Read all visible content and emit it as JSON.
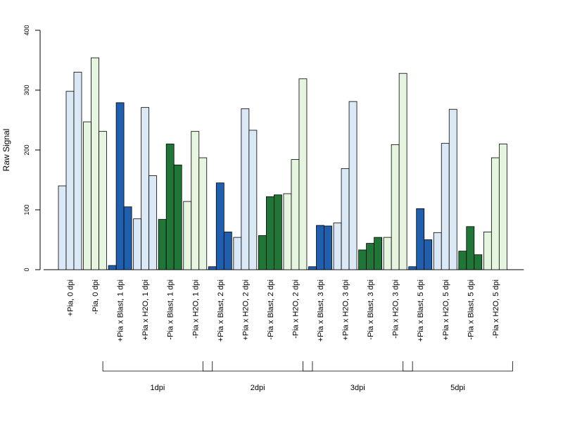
{
  "chart_data": {
    "type": "bar",
    "ylabel": "Raw Signal",
    "ylim": [
      0,
      400
    ],
    "yticks": [
      0,
      100,
      200,
      300,
      400
    ],
    "categories": [
      "+Pia, 0 dpi",
      "-Pia, 0 dpi",
      "+Pia x Blast, 1 dpi",
      "+Pia x H2O, 1 dpi",
      "-Pia x Blast, 1 dpi",
      "-Pia x H2O, 1 dpi",
      "+Pia x Blast, 2 dpi",
      "+Pia x H2O, 2 dpi",
      "-Pia x Blast, 2 dpi",
      "-Pia x H2O, 2 dpi",
      "+Pia x Blast, 3 dpi",
      "+Pia x H2O, 3 dpi",
      "-Pia x Blast, 3 dpi",
      "-Pia x H2O, 3 dpi",
      "+Pia x Blast, 5 dpi",
      "+Pia x H2O, 5 dpi",
      "-Pia x Blast, 5 dpi",
      "-Pia x H2O, 5 dpi"
    ],
    "groups": [
      {
        "color": "#dbe8f6",
        "values": [
          140,
          298,
          330
        ]
      },
      {
        "color": "#e5f5df",
        "values": [
          247,
          354,
          231
        ]
      },
      {
        "color": "#1f5fad",
        "values": [
          7,
          279,
          105
        ]
      },
      {
        "color": "#dbe8f6",
        "values": [
          85,
          271,
          157
        ]
      },
      {
        "color": "#207637",
        "values": [
          84,
          210,
          175
        ]
      },
      {
        "color": "#e5f5df",
        "values": [
          114,
          231,
          187
        ]
      },
      {
        "color": "#1f5fad",
        "values": [
          5,
          145,
          63
        ]
      },
      {
        "color": "#dbe8f6",
        "values": [
          54,
          269,
          233
        ]
      },
      {
        "color": "#207637",
        "values": [
          57,
          122,
          125
        ]
      },
      {
        "color": "#e5f5df",
        "values": [
          127,
          184,
          319
        ]
      },
      {
        "color": "#1f5fad",
        "values": [
          5,
          74,
          73
        ]
      },
      {
        "color": "#dbe8f6",
        "values": [
          78,
          169,
          281
        ]
      },
      {
        "color": "#207637",
        "values": [
          33,
          44,
          54
        ]
      },
      {
        "color": "#e5f5df",
        "values": [
          54,
          209,
          328
        ]
      },
      {
        "color": "#1f5fad",
        "values": [
          5,
          102,
          50
        ]
      },
      {
        "color": "#dbe8f6",
        "values": [
          62,
          211,
          268
        ]
      },
      {
        "color": "#207637",
        "values": [
          31,
          72,
          25
        ]
      },
      {
        "color": "#e5f5df",
        "values": [
          63,
          187,
          210
        ]
      }
    ],
    "brackets": [
      {
        "label": "1dpi",
        "first_category": 2,
        "last_category": 5
      },
      {
        "label": "2dpi",
        "first_category": 6,
        "last_category": 9
      },
      {
        "label": "3dpi",
        "first_category": 10,
        "last_category": 13
      },
      {
        "label": "5dpi",
        "first_category": 14,
        "last_category": 17
      }
    ],
    "grid": false,
    "legend": "none"
  }
}
